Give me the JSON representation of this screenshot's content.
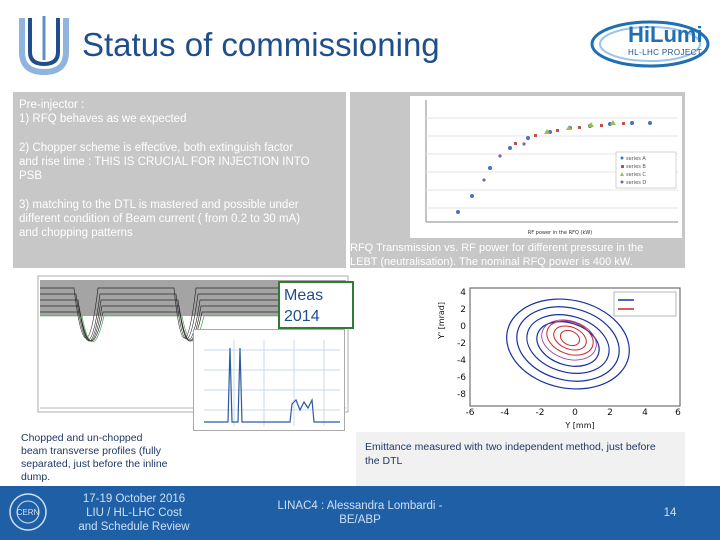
{
  "slide": {
    "title": "Status of commissioning",
    "logo_right_text": "HiLumi",
    "logo_right_sub": "HL-LHC PROJECT"
  },
  "preinjector": {
    "heading": "Pre-injector :",
    "item1": "1) RFQ behaves as we expected",
    "item2_line1": "2) Chopper scheme is effective, both extinguish factor",
    "item2_line2": "and rise time : THIS IS CRUCIAL FOR INJECTION INTO",
    "item2_line3": "PSB",
    "item3_line1": "3) matching to the DTL is mastered and possible under",
    "item3_line2": "different condition of Beam current ( from 0.2 to 30 mA)",
    "item3_line3": "and chopping patterns"
  },
  "rfq_figure": {
    "caption_line1": "RFQ Transmission vs. RF power for different pressure in the",
    "caption_line2": "LEBT (neutralisation). The nominal RFQ power is 400 kW.",
    "xlabel": "RF power in the RFQ (kW)"
  },
  "meas_box": {
    "line1": "Meas",
    "line2": "2014"
  },
  "emittance_figure": {
    "ylabel": "Y' [mrad]",
    "xlabel": "Y [mm]",
    "yticks": [
      "4",
      "2",
      "0",
      "-2",
      "-4",
      "-6",
      "-8"
    ],
    "xticks": [
      "-6",
      "-4",
      "-2",
      "0",
      "2",
      "4",
      "6"
    ],
    "caption_line1": "Emittance measured with two independent method, just before",
    "caption_line2": "the DTL"
  },
  "profiles_caption": {
    "line1": "Chopped and un-chopped",
    "line2": "beam transverse profiles (fully",
    "line3": "separated, just before the inline",
    "line4": "dump."
  },
  "footer": {
    "left_line1": "17-19 October 2016",
    "left_line2": "LIU / HL-LHC Cost",
    "left_line3": "and Schedule Review",
    "center_line1": "LINAC4 : Alessandra Lombardi -",
    "center_line2": "BE/ABP",
    "page_number": "14",
    "cern_label": "CERN"
  },
  "colors": {
    "title_blue": "#1f4e8c",
    "footer_blue": "#1f5fa6",
    "panel_gray": "#c7c7c7"
  }
}
